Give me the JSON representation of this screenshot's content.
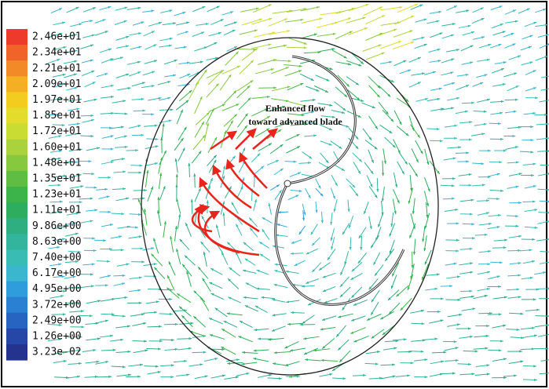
{
  "colorbar": {
    "labels": [
      "2.46e+01",
      "2.34e+01",
      "2.21e+01",
      "2.09e+01",
      "1.97e+01",
      "1.85e+01",
      "1.72e+01",
      "1.60e+01",
      "1.48e+01",
      "1.35e+01",
      "1.23e+01",
      "1.11e+01",
      "9.86e+00",
      "8.63e+00",
      "7.40e+00",
      "6.17e+00",
      "4.95e+00",
      "3.72e+00",
      "2.49e+00",
      "1.26e+00",
      "3.23e-02"
    ],
    "colors": [
      "#ee3a2b",
      "#f0642a",
      "#f28a28",
      "#f4b022",
      "#f2cc1e",
      "#e4dc2a",
      "#c9dc34",
      "#a9d23c",
      "#86c83e",
      "#5ebd42",
      "#3cb44a",
      "#2ead5e",
      "#2fae82",
      "#33b49c",
      "#38bcb4",
      "#3ab6cf",
      "#2f9ddc",
      "#2a80d2",
      "#2763c0",
      "#2646a8",
      "#23338e"
    ]
  },
  "annotation": {
    "lines": [
      "Enhanced flow",
      "toward advanced blade"
    ]
  }
}
